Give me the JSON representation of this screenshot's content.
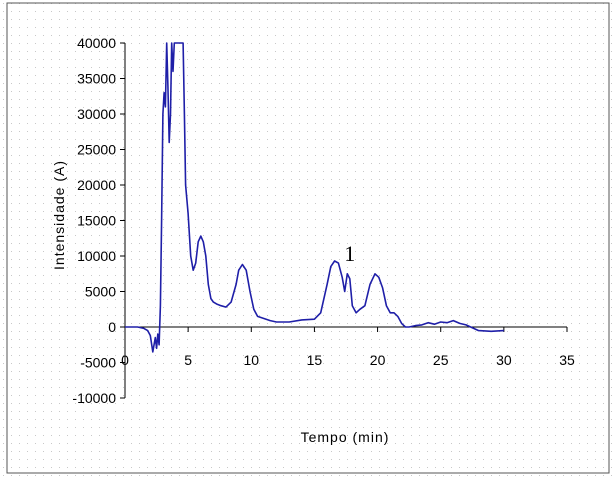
{
  "chart_data": {
    "type": "line",
    "title": "",
    "xlabel": "Tempo (min)",
    "ylabel": "Intensidade (A)",
    "xlim": [
      0,
      35
    ],
    "ylim": [
      -10000,
      40000
    ],
    "xticks": [
      "0",
      "5",
      "10",
      "15",
      "20",
      "25",
      "30",
      "35"
    ],
    "yticks": [
      "40000",
      "35000",
      "30000",
      "25000",
      "20000",
      "15000",
      "10000",
      "5000",
      "0",
      "-5000",
      "-10000"
    ],
    "grid": true,
    "legend": "none",
    "line_color": "#1f1fa8",
    "annotations": [
      {
        "text": "1",
        "x": 17.6,
        "y": 9000
      }
    ],
    "series": [
      {
        "x": [
          0,
          1,
          1.5,
          1.8,
          2.0,
          2.2,
          2.4,
          2.5,
          2.6,
          2.7,
          2.8,
          2.9,
          3.0,
          3.1,
          3.2,
          3.3,
          3.4,
          3.5,
          3.6,
          3.7,
          3.8,
          3.9,
          4.0,
          4.2,
          4.4,
          4.6,
          4.7,
          4.8,
          5.0,
          5.2,
          5.4,
          5.6,
          5.8,
          6.0,
          6.2,
          6.4,
          6.6,
          6.8,
          7.0,
          7.3,
          7.6,
          8.0,
          8.4,
          8.8,
          9.0,
          9.3,
          9.6,
          9.9,
          10.2,
          10.5,
          11.0,
          11.5,
          12.0,
          13.0,
          14.0,
          15.0,
          15.5,
          16.0,
          16.3,
          16.6,
          16.9,
          17.2,
          17.4,
          17.6,
          17.8,
          18.0,
          18.3,
          18.6,
          19.0,
          19.4,
          19.8,
          20.1,
          20.4,
          20.7,
          21.0,
          21.3,
          21.6,
          21.9,
          22.2,
          22.5,
          23.0,
          23.5,
          24.0,
          24.5,
          25.0,
          25.5,
          26.0,
          26.5,
          27.0,
          28.0,
          29.0,
          30.0
        ],
        "y": [
          0,
          0,
          -200,
          -500,
          -1200,
          -3500,
          -1500,
          -3000,
          -1000,
          -2500,
          3000,
          15000,
          30000,
          33000,
          31000,
          40000,
          34000,
          26000,
          30000,
          40000,
          36000,
          40000,
          40000,
          40000,
          40000,
          40000,
          30000,
          20000,
          16000,
          10000,
          8000,
          9000,
          12000,
          12800,
          12000,
          10000,
          6000,
          4000,
          3500,
          3200,
          3000,
          2800,
          3500,
          6000,
          8000,
          8800,
          8000,
          5000,
          2500,
          1500,
          1200,
          900,
          700,
          700,
          1000,
          1100,
          2000,
          6000,
          8500,
          9300,
          9000,
          7000,
          5000,
          7500,
          6800,
          3000,
          2000,
          2500,
          3000,
          6000,
          7500,
          7000,
          5500,
          3000,
          2000,
          2000,
          1500,
          500,
          0,
          0,
          200,
          300,
          600,
          400,
          700,
          600,
          900,
          500,
          300,
          -500,
          -600,
          -500
        ]
      }
    ]
  }
}
